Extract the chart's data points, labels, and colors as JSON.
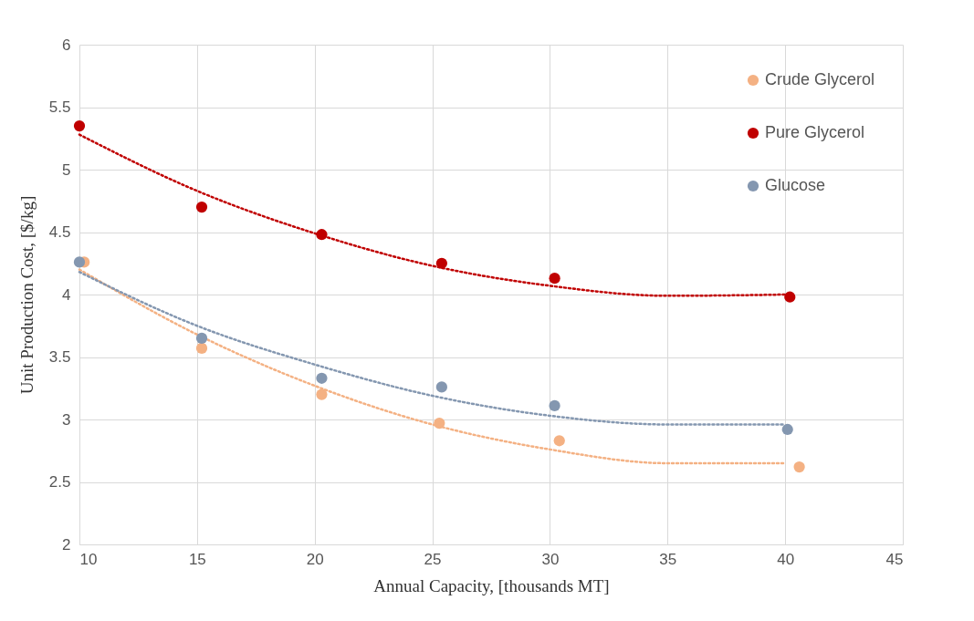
{
  "chart_data": {
    "type": "scatter",
    "xlabel": "Annual Capacity, [thousands MT]",
    "ylabel": "Unit Production Cost, [$/kg]",
    "xlim": [
      10,
      45
    ],
    "xticks": [
      10,
      15,
      20,
      25,
      30,
      35,
      40,
      45
    ],
    "ylim": [
      2,
      6
    ],
    "yticks": [
      2,
      2.5,
      3,
      3.5,
      4,
      4.5,
      5,
      5.5,
      6
    ],
    "grid": true,
    "legend": "top right",
    "series": [
      {
        "name": "Crude Glycerol",
        "marker": "circle",
        "color": "#f4b183",
        "x": [
          10.2,
          15.2,
          20.3,
          25.3,
          30.4,
          40.6
        ],
        "values": [
          4.26,
          3.57,
          3.2,
          2.97,
          2.83,
          2.62
        ]
      },
      {
        "name": "Pure Glycerol",
        "marker": "circle",
        "color": "#c00000",
        "x": [
          10,
          15.2,
          20.3,
          25.4,
          30.2,
          40.2
        ],
        "values": [
          5.35,
          4.7,
          4.48,
          4.25,
          4.13,
          3.98
        ]
      },
      {
        "name": "Glucose",
        "marker": "circle",
        "color": "#8497b0",
        "x": [
          10,
          15.2,
          20.3,
          25.4,
          30.2,
          40.1
        ],
        "values": [
          4.26,
          3.65,
          3.33,
          3.26,
          3.11,
          2.92
        ]
      },
      {
        "type": "line",
        "line_style": "dotted",
        "color": "#f4b183",
        "x": [
          10,
          15,
          20,
          25,
          30,
          35,
          40
        ],
        "values": [
          4.2,
          3.68,
          3.27,
          2.96,
          2.76,
          2.65,
          2.65
        ]
      },
      {
        "type": "line",
        "line_style": "dotted",
        "color": "#c00000",
        "x": [
          10,
          15,
          20,
          25,
          30,
          35,
          40
        ],
        "values": [
          5.28,
          4.83,
          4.49,
          4.23,
          4.07,
          3.99,
          4.0
        ]
      },
      {
        "type": "line",
        "line_style": "dotted",
        "color": "#8497b0",
        "x": [
          10,
          15,
          20,
          25,
          30,
          35,
          40
        ],
        "values": [
          4.18,
          3.75,
          3.44,
          3.19,
          3.03,
          2.96,
          2.96
        ]
      }
    ]
  }
}
